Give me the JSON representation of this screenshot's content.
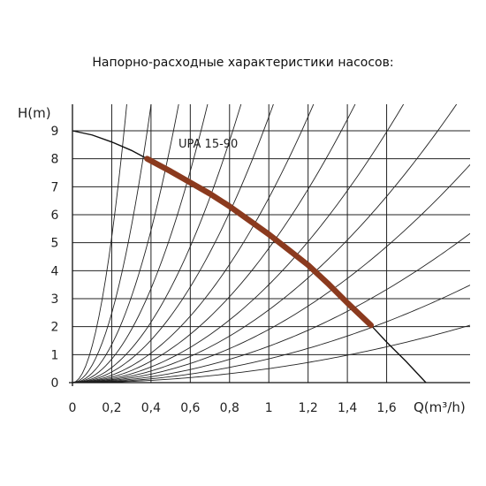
{
  "title": "Напорно-расходные характеристики насосов:",
  "chart_data": {
    "type": "line",
    "xlabel": "Q(m³/h)",
    "ylabel": "H(m)",
    "xlim": [
      0,
      1.8
    ],
    "ylim": [
      0,
      10
    ],
    "x_ticks": [
      "0",
      "0,2",
      "0,4",
      "0,6",
      "0,8",
      "1",
      "1,2",
      "1,4",
      "1,6"
    ],
    "y_ticks": [
      "0",
      "1",
      "2",
      "3",
      "4",
      "5",
      "6",
      "7",
      "8",
      "9"
    ],
    "grid": true,
    "series": [
      {
        "name": "UPA 15-90",
        "color": "#8B3A1E",
        "x": [
          0.38,
          0.5,
          0.6,
          0.7,
          0.8,
          0.9,
          1.0,
          1.1,
          1.2,
          1.3,
          1.4,
          1.52
        ],
        "y": [
          8.0,
          7.55,
          7.15,
          6.75,
          6.3,
          5.8,
          5.3,
          4.75,
          4.2,
          3.55,
          2.85,
          2.05
        ]
      }
    ],
    "full_pump_curve": {
      "x": [
        0,
        0.1,
        0.2,
        0.3,
        0.38,
        0.5,
        0.6,
        0.7,
        0.8,
        0.9,
        1.0,
        1.1,
        1.2,
        1.3,
        1.4,
        1.52,
        1.6,
        1.7,
        1.8
      ],
      "y": [
        9.0,
        8.85,
        8.6,
        8.3,
        8.0,
        7.55,
        7.15,
        6.75,
        6.3,
        5.8,
        5.3,
        4.75,
        4.2,
        3.55,
        2.85,
        2.05,
        1.45,
        0.75,
        0.0
      ]
    },
    "system_curve_coefficients": [
      130,
      62,
      34,
      21,
      13.5,
      9.5,
      6.6,
      4.8,
      3.5,
      2.6,
      1.9,
      1.3,
      0.85,
      0.5
    ]
  }
}
